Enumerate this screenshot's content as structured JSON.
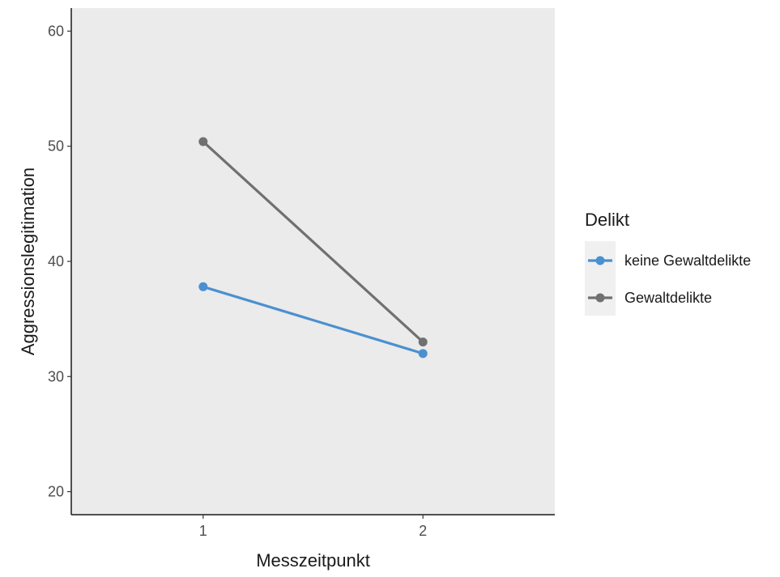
{
  "chart_data": {
    "type": "line",
    "xlabel": "Messzeitpunkt",
    "ylabel": "Aggressionslegitimation",
    "x": [
      "1",
      "2"
    ],
    "xlim": [
      0.4,
      2.6
    ],
    "ylim": [
      18,
      62
    ],
    "yticks": [
      20,
      30,
      40,
      50,
      60
    ],
    "grid": false,
    "panel_background": "#ebebeb",
    "legend": {
      "title": "Delikt",
      "position": "right"
    },
    "series": [
      {
        "name": "keine Gewaltdelikte",
        "color": "#4a90d0",
        "values": [
          37.8,
          32.0
        ]
      },
      {
        "name": "Gewaltdelikte",
        "color": "#707070",
        "values": [
          50.4,
          33.0
        ]
      }
    ]
  }
}
